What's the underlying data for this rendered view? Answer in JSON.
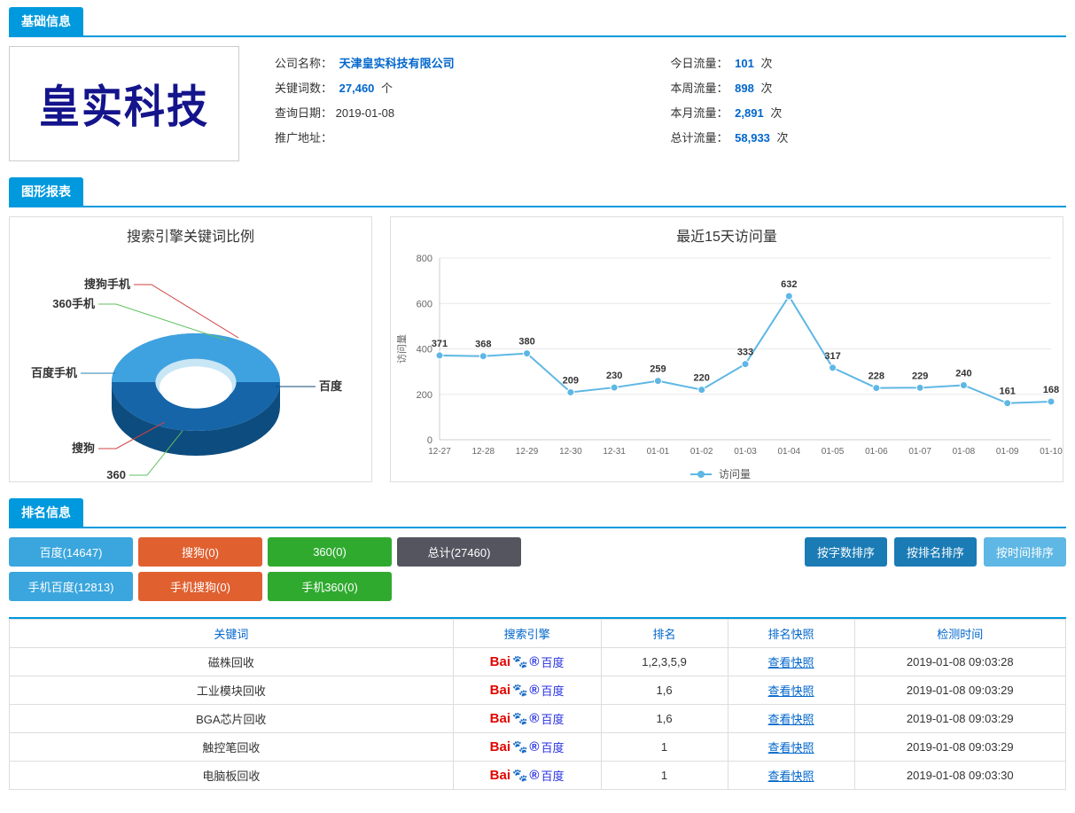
{
  "sections": {
    "basic_info": "基础信息",
    "charts": "图形报表",
    "ranking": "排名信息"
  },
  "company": {
    "logo_text": "皇实科技",
    "name_label": "公司名称：",
    "name_value": "天津皇实科技有限公司",
    "keyword_label": "关键词数：",
    "keyword_value": "27,460",
    "keyword_unit": "个",
    "query_date_label": "查询日期：",
    "query_date_value": "2019-01-08",
    "promo_addr_label": "推广地址：",
    "today_label": "今日流量：",
    "today_value": "101",
    "today_unit": "次",
    "week_label": "本周流量：",
    "week_value": "898",
    "week_unit": "次",
    "month_label": "本月流量：",
    "month_value": "2,891",
    "month_unit": "次",
    "total_label": "总计流量：",
    "total_value": "58,933",
    "total_unit": "次"
  },
  "pie_chart": {
    "title": "搜索引擎关键词比例",
    "type": "donut-3d",
    "labels": [
      {
        "name": "搜狗手机",
        "color": "#d04040"
      },
      {
        "name": "360手机",
        "color": "#60c060"
      },
      {
        "name": "百度手机",
        "color": "#2a7fb8"
      },
      {
        "name": "搜狗",
        "color": "#d04040"
      },
      {
        "name": "360",
        "color": "#60c060"
      },
      {
        "name": "百度",
        "color": "#0e4a7a"
      }
    ],
    "dominant_color": "#1565a8",
    "dominant_light": "#3fa2e0",
    "hole_color": "#c9e6f5"
  },
  "line_chart": {
    "title": "最近15天访问量",
    "type": "line",
    "ylabel": "访问量",
    "legend": "访问量",
    "line_color": "#5eb7e4",
    "marker_color": "#5eb7e4",
    "grid_color": "#e8e8e8",
    "axis_color": "#cccccc",
    "label_color": "#666666",
    "ylim": [
      0,
      800
    ],
    "ytick_step": 200,
    "categories": [
      "12-27",
      "12-28",
      "12-29",
      "12-30",
      "12-31",
      "01-01",
      "01-02",
      "01-03",
      "01-04",
      "01-05",
      "01-06",
      "01-07",
      "01-08",
      "01-09",
      "01-10"
    ],
    "values": [
      371,
      368,
      380,
      209,
      230,
      259,
      220,
      333,
      632,
      317,
      228,
      229,
      240,
      161,
      168
    ]
  },
  "filters": {
    "row1": [
      {
        "label": "百度(14647)",
        "color": "#3aa6dd"
      },
      {
        "label": "搜狗(0)",
        "color": "#e06030"
      },
      {
        "label": "360(0)",
        "color": "#2faa2f"
      },
      {
        "label": "总计(27460)",
        "color": "#555560"
      }
    ],
    "row2": [
      {
        "label": "手机百度(12813)",
        "color": "#3aa6dd"
      },
      {
        "label": "手机搜狗(0)",
        "color": "#e06030"
      },
      {
        "label": "手机360(0)",
        "color": "#2faa2f"
      }
    ],
    "sort": [
      {
        "label": "按字数排序",
        "color": "#1a7bb5"
      },
      {
        "label": "按排名排序",
        "color": "#1a7bb5"
      },
      {
        "label": "按时间排序",
        "color": "#5eb7e4"
      }
    ]
  },
  "table": {
    "headers": [
      "关键词",
      "搜索引擎",
      "排名",
      "排名快照",
      "检测时间"
    ],
    "col_widths": [
      "42%",
      "14%",
      "12%",
      "12%",
      "20%"
    ],
    "snapshot_text": "查看快照",
    "rows": [
      {
        "kw": "磁株回收",
        "rank": "1,2,3,5,9",
        "time": "2019-01-08 09:03:28"
      },
      {
        "kw": "工业模块回收",
        "rank": "1,6",
        "time": "2019-01-08 09:03:29"
      },
      {
        "kw": "BGA芯片回收",
        "rank": "1,6",
        "time": "2019-01-08 09:03:29"
      },
      {
        "kw": "触控笔回收",
        "rank": "1",
        "time": "2019-01-08 09:03:29"
      },
      {
        "kw": "电脑板回收",
        "rank": "1",
        "time": "2019-01-08 09:03:30"
      }
    ]
  }
}
